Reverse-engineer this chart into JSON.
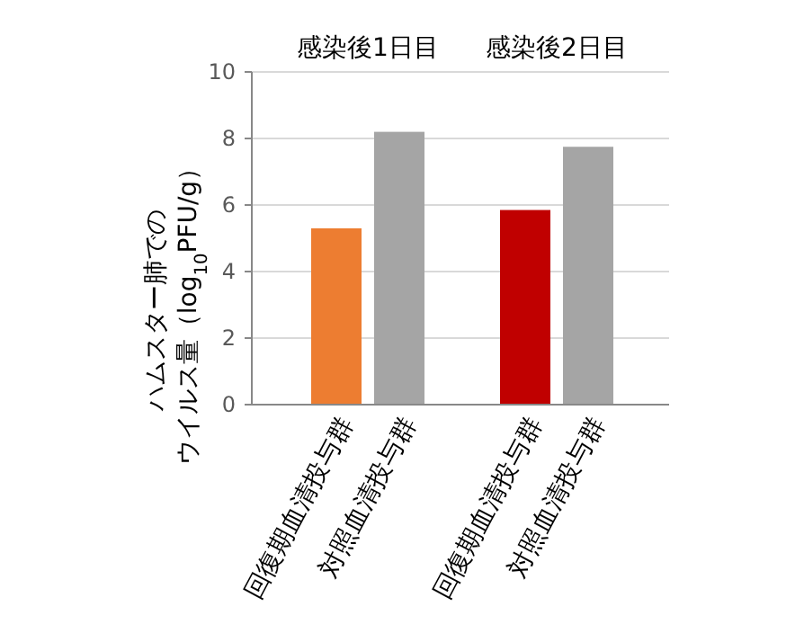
{
  "chart_data": {
    "type": "bar",
    "ylabel": "ハムスター肺でのウイルス量（log$_{10}$PFU/g）",
    "categories": [
      "回復期血清投与群",
      "対照血清投与群",
      "回復期血清投与群",
      "対照血清投与群"
    ],
    "values": [
      5.3,
      8.2,
      5.85,
      7.75
    ],
    "colors": [
      "#ed7d31",
      "#a5a5a5",
      "#c00000",
      "#a5a5a5"
    ],
    "ylim": [
      0,
      10
    ],
    "yticks": [
      0,
      2,
      4,
      6,
      8,
      10
    ],
    "grid": "y",
    "annotations": [
      "感染後1日目",
      "感染後2日目"
    ]
  }
}
